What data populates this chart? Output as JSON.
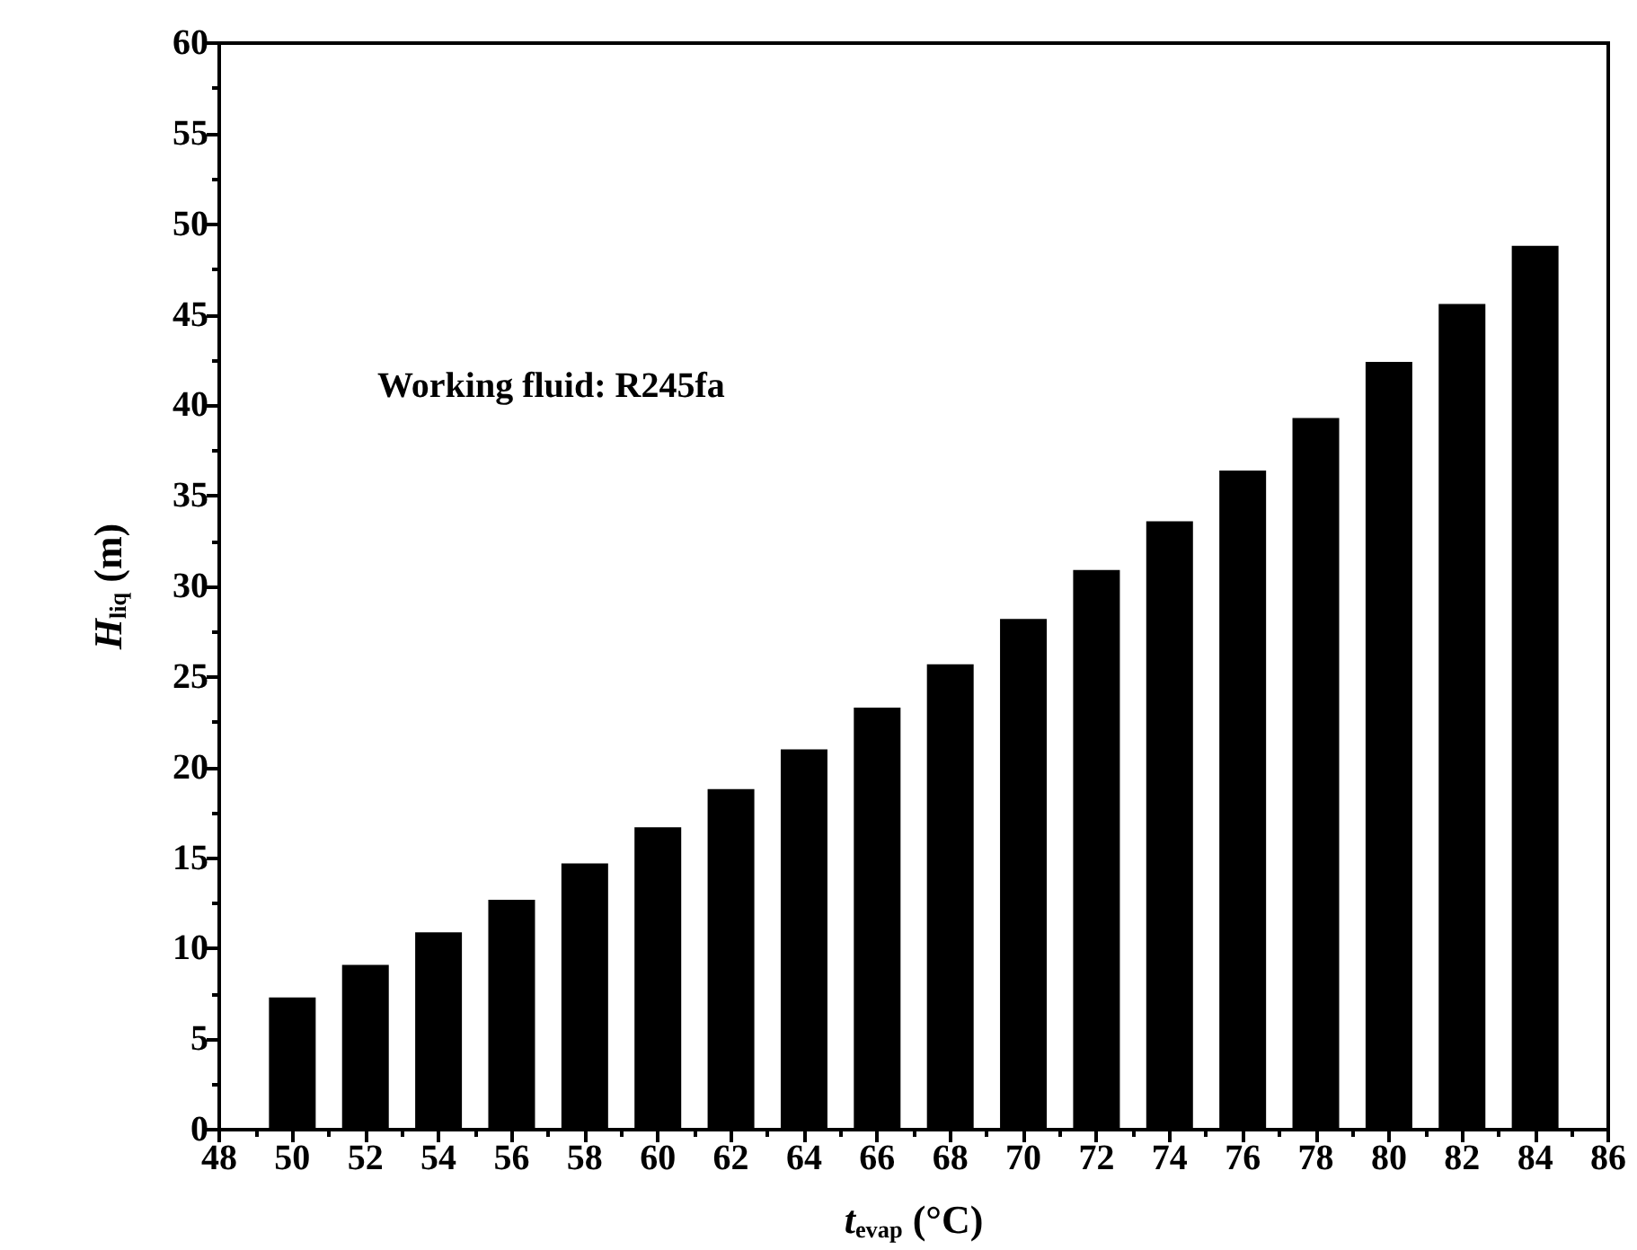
{
  "chart_data": {
    "type": "bar",
    "xlabel": "t$_{evap}$ (°C)",
    "ylabel": "H$_{liq}$ (m)",
    "annotations": [
      "Working fluid: R245fa"
    ],
    "x": [
      50,
      52,
      54,
      56,
      58,
      60,
      62,
      64,
      66,
      68,
      70,
      72,
      74,
      76,
      78,
      80,
      82,
      84
    ],
    "values": [
      7.3,
      9.1,
      10.9,
      12.7,
      14.7,
      16.7,
      18.8,
      21.0,
      23.3,
      25.7,
      28.2,
      30.9,
      33.6,
      36.4,
      39.3,
      42.4,
      45.6,
      48.8
    ],
    "color": "#000000",
    "xlim": [
      48,
      86
    ],
    "xticks": [
      48,
      50,
      52,
      54,
      56,
      58,
      60,
      62,
      64,
      66,
      68,
      70,
      72,
      74,
      76,
      78,
      80,
      82,
      84,
      86
    ],
    "ylim": [
      0,
      60
    ],
    "yticks": [
      0,
      5,
      10,
      15,
      20,
      25,
      30,
      35,
      40,
      45,
      50,
      55,
      60
    ],
    "grid": false
  }
}
